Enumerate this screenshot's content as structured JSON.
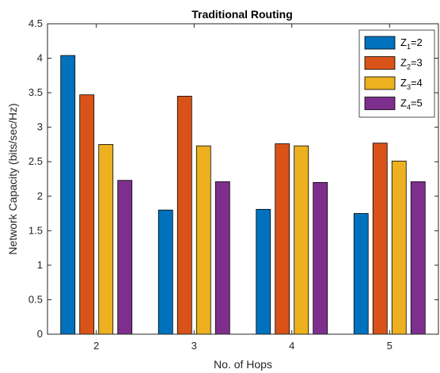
{
  "chart_data": {
    "type": "bar",
    "title": "Traditional Routing",
    "xlabel": "No. of Hops",
    "ylabel": "Network Capacity (bits/sec/Hz)",
    "categories": [
      "2",
      "3",
      "4",
      "5"
    ],
    "ylim": [
      0,
      4.5
    ],
    "yticks": [
      "0",
      "0.5",
      "1",
      "1.5",
      "2",
      "2.5",
      "3",
      "3.5",
      "4",
      "4.5"
    ],
    "grid": false,
    "legend_position": "top-right",
    "series": [
      {
        "name": "Z1=2",
        "label_main": "Z",
        "label_sub": "1",
        "label_tail": "=2",
        "color": "#0072BD",
        "values": [
          4.04,
          1.8,
          1.81,
          1.75
        ]
      },
      {
        "name": "Z2=3",
        "label_main": "Z",
        "label_sub": "2",
        "label_tail": "=3",
        "color": "#D95319",
        "values": [
          3.47,
          3.45,
          2.76,
          2.77
        ]
      },
      {
        "name": "Z3=4",
        "label_main": "Z",
        "label_sub": "3",
        "label_tail": "=4",
        "color": "#EDB120",
        "values": [
          2.75,
          2.73,
          2.73,
          2.51
        ]
      },
      {
        "name": "Z4=5",
        "label_main": "Z",
        "label_sub": "4",
        "label_tail": "=5",
        "color": "#7E2F8E",
        "values": [
          2.23,
          2.21,
          2.2,
          2.21
        ]
      }
    ]
  }
}
